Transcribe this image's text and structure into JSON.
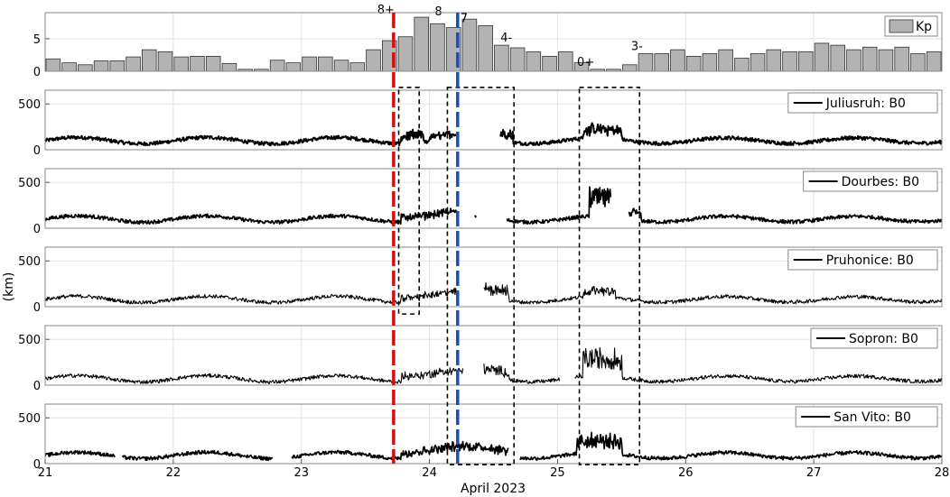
{
  "chart_data": {
    "type": "multi-panel time series",
    "x_axis": {
      "label": "April 2023",
      "range": [
        21,
        28
      ],
      "ticks": [
        "21",
        "22",
        "23",
        "24",
        "25",
        "26",
        "27",
        "28"
      ]
    },
    "y_label": "(km)",
    "events": [
      {
        "time": 23.72,
        "color": "#d01010"
      },
      {
        "time": 24.22,
        "color": "#1a4fb5"
      }
    ],
    "kp_panel": {
      "type": "bar",
      "legend": "Kp",
      "ylim": [
        0,
        9
      ],
      "yticks": [
        "0",
        "5"
      ],
      "bar_width_days": 0.125,
      "values": [
        1.9,
        1.3,
        1.0,
        1.6,
        1.6,
        2.2,
        3.3,
        3.0,
        2.2,
        2.3,
        2.3,
        1.2,
        0.3,
        0.3,
        1.7,
        1.3,
        2.2,
        2.2,
        1.7,
        1.3,
        3.3,
        4.7,
        5.3,
        8.3,
        7.3,
        6.7,
        8.0,
        7.0,
        4.0,
        3.6,
        3.0,
        2.3,
        3.0,
        1.3,
        0.3,
        0.3,
        1.0,
        2.7,
        2.7,
        3.3,
        2.3,
        2.7,
        3.3,
        2.0,
        2.7,
        3.3,
        3.0,
        3.0,
        4.3,
        4.0,
        3.3,
        3.7,
        3.3,
        3.7,
        2.7,
        3.0
      ],
      "annotations": [
        {
          "label": "8+",
          "time": 23.66,
          "kp": 8.3
        },
        {
          "label": "8",
          "time": 24.07,
          "kp": 8.0
        },
        {
          "label": "7",
          "time": 24.27,
          "kp": 7.0
        },
        {
          "label": "4-",
          "time": 24.6,
          "kp": 4.0
        },
        {
          "label": "0+",
          "time": 25.22,
          "kp": 0.3
        },
        {
          "label": "3-",
          "time": 25.62,
          "kp": 2.7
        }
      ]
    },
    "b0_panels": [
      {
        "station": "Juliusruh",
        "legend": "Juliusruh: B0",
        "stroke": 2.0,
        "base": 100,
        "gaps": [
          [
            24.22,
            24.55
          ]
        ],
        "storm": [
          [
            23.78,
            23.95,
            110
          ],
          [
            24.0,
            24.22,
            60
          ],
          [
            24.55,
            24.65,
            110
          ],
          [
            25.2,
            25.5,
            120
          ]
        ]
      },
      {
        "station": "Dourbes",
        "legend": "Dourbes: B0",
        "stroke": 1.7,
        "base": 100,
        "gaps": [
          [
            24.22,
            24.35
          ],
          [
            24.37,
            24.6
          ],
          [
            25.42,
            25.55
          ]
        ],
        "storm": [
          [
            23.78,
            24.22,
            70
          ],
          [
            25.25,
            25.42,
            260
          ],
          [
            25.55,
            25.65,
            100
          ]
        ]
      },
      {
        "station": "Pruhonice",
        "legend": "Pruhonice: B0",
        "stroke": 1.1,
        "base": 80,
        "gaps": [
          [
            24.22,
            24.42
          ]
        ],
        "storm": [
          [
            23.78,
            24.22,
            70
          ],
          [
            24.42,
            24.62,
            130
          ],
          [
            25.2,
            25.45,
            80
          ]
        ]
      },
      {
        "station": "Sopron",
        "legend": "Sopron: B0",
        "stroke": 1.1,
        "base": 70,
        "gaps": [
          [
            24.26,
            24.42
          ],
          [
            25.02,
            25.13
          ]
        ],
        "storm": [
          [
            23.78,
            24.26,
            80
          ],
          [
            24.42,
            24.62,
            110
          ],
          [
            25.2,
            25.5,
            250
          ]
        ]
      },
      {
        "station": "San Vito",
        "legend": "San Vito: B0",
        "stroke": 1.7,
        "base": 90,
        "gaps": [
          [
            21.55,
            21.6
          ],
          [
            22.78,
            22.92
          ],
          [
            24.62,
            24.7
          ]
        ],
        "storm": [
          [
            23.78,
            24.62,
            90
          ],
          [
            25.15,
            25.5,
            170
          ]
        ]
      }
    ],
    "b0_ylim": [
      0,
      650
    ],
    "b0_yticks": [
      "0",
      "500"
    ],
    "boxes": [
      {
        "t0": 23.76,
        "t1": 23.92,
        "top_panel": 1,
        "bottom_panel": 3,
        "top_km": 680,
        "bottom_km": -80
      },
      {
        "t0": 24.14,
        "t1": 24.66,
        "top_panel": 1,
        "bottom_panel": 5,
        "top_km": 680,
        "bottom_km": -10
      },
      {
        "t0": 25.17,
        "t1": 25.64,
        "top_panel": 1,
        "bottom_panel": 5,
        "top_km": 680,
        "bottom_km": -10
      }
    ]
  }
}
